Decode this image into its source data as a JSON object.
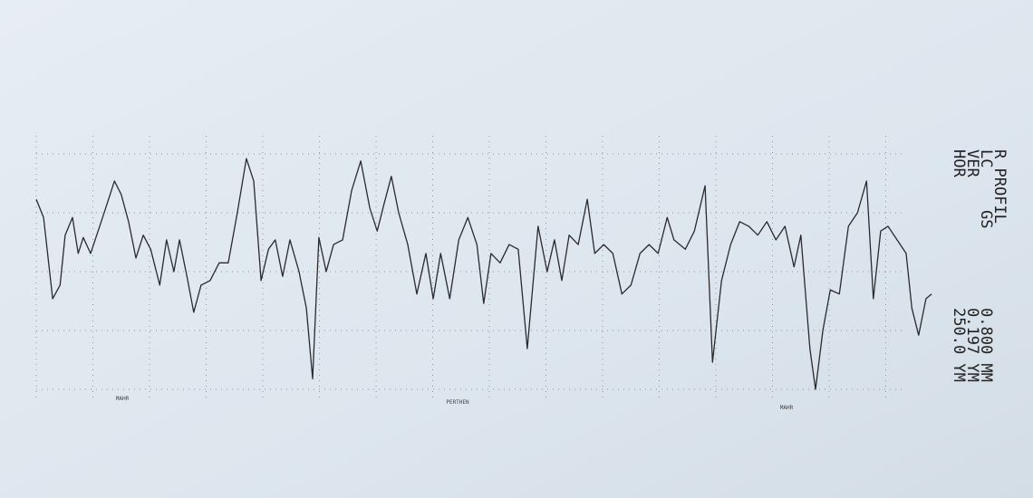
{
  "chart_data": {
    "type": "line",
    "x": [
      0,
      0.13,
      0.29,
      0.42,
      0.51,
      0.64,
      0.74,
      0.83,
      0.96,
      1.12,
      1.25,
      1.38,
      1.5,
      1.63,
      1.76,
      1.89,
      2.02,
      2.18,
      2.3,
      2.43,
      2.53,
      2.66,
      2.78,
      2.91,
      3.07,
      3.23,
      3.39,
      3.55,
      3.71,
      3.84,
      3.97,
      4.1,
      4.22,
      4.35,
      4.48,
      4.64,
      4.77,
      4.88,
      4.99,
      5.12,
      5.25,
      5.41,
      5.57,
      5.73,
      5.89,
      6.02,
      6.14,
      6.27,
      6.4,
      6.56,
      6.72,
      6.88,
      7.01,
      7.14,
      7.3,
      7.46,
      7.62,
      7.78,
      7.9,
      8.03,
      8.19,
      8.35,
      8.51,
      8.67,
      8.86,
      9.02,
      9.15,
      9.28,
      9.41,
      9.57,
      9.73,
      9.86,
      10.02,
      10.18,
      10.34,
      10.5,
      10.66,
      10.82,
      10.98,
      11.14,
      11.26,
      11.46,
      11.62,
      11.81,
      11.94,
      12.1,
      12.26,
      12.42,
      12.58,
      12.74,
      12.9,
      13.06,
      13.22,
      13.38,
      13.5,
      13.66,
      13.76,
      13.89,
      14.02,
      14.18,
      14.34,
      14.5,
      14.66,
      14.78,
      14.91,
      15.04,
      15.2,
      15.36,
      15.46,
      15.58,
      15.71,
      15.81
    ],
    "series": [
      {
        "color": "#2a2a2e",
        "values": [
          1.23,
          0.92,
          -0.46,
          -0.23,
          0.62,
          0.92,
          0.31,
          0.58,
          0.31,
          0.77,
          1.15,
          1.54,
          1.31,
          0.85,
          0.23,
          0.62,
          0.38,
          -0.23,
          0.54,
          0,
          0.54,
          -0.08,
          -0.69,
          -0.23,
          -0.15,
          0.15,
          0.15,
          1.0,
          1.92,
          1.54,
          -0.15,
          0.38,
          0.54,
          -0.08,
          0.54,
          0,
          -0.62,
          -1.82,
          0.58,
          0,
          0.46,
          0.54,
          1.38,
          1.88,
          1.08,
          0.69,
          1.15,
          1.62,
          1.0,
          0.46,
          -0.38,
          0.31,
          -0.46,
          0.31,
          -0.46,
          0.54,
          0.92,
          0.46,
          -0.54,
          0.31,
          0.15,
          0.46,
          0.38,
          -1.31,
          0.77,
          0,
          0.54,
          -0.15,
          0.62,
          0.46,
          1.23,
          0.31,
          0.46,
          0.31,
          -0.38,
          -0.23,
          0.31,
          0.46,
          0.31,
          0.92,
          0.54,
          0.38,
          0.69,
          1.46,
          -1.54,
          -0.15,
          0.46,
          0.85,
          0.77,
          0.62,
          0.85,
          0.54,
          0.77,
          0.08,
          0.62,
          -1.31,
          -2.0,
          -1.0,
          -0.31,
          -0.38,
          0.77,
          1.0,
          1.54,
          -0.46,
          0.69,
          0.77,
          0.54,
          0.31,
          -0.62,
          -1.08,
          -0.46,
          -0.38
        ]
      }
    ],
    "xlim": [
      0,
      16
    ],
    "ylim": [
      -2.5,
      2.5
    ],
    "xticks": [
      0,
      1,
      2,
      3,
      4,
      5,
      6,
      7,
      8,
      9,
      10,
      11,
      12,
      13,
      14,
      15
    ],
    "yticks": [
      -2,
      -1,
      0,
      1,
      2
    ],
    "grid": true,
    "annotations": [
      "MAHR",
      "PERTHEN",
      "MAHR"
    ],
    "header": [
      "R PROFIL",
      "LC",
      "GS",
      "0.800 MM",
      "VER",
      "0.197 YM",
      "HOR",
      "250.0 YM"
    ]
  }
}
